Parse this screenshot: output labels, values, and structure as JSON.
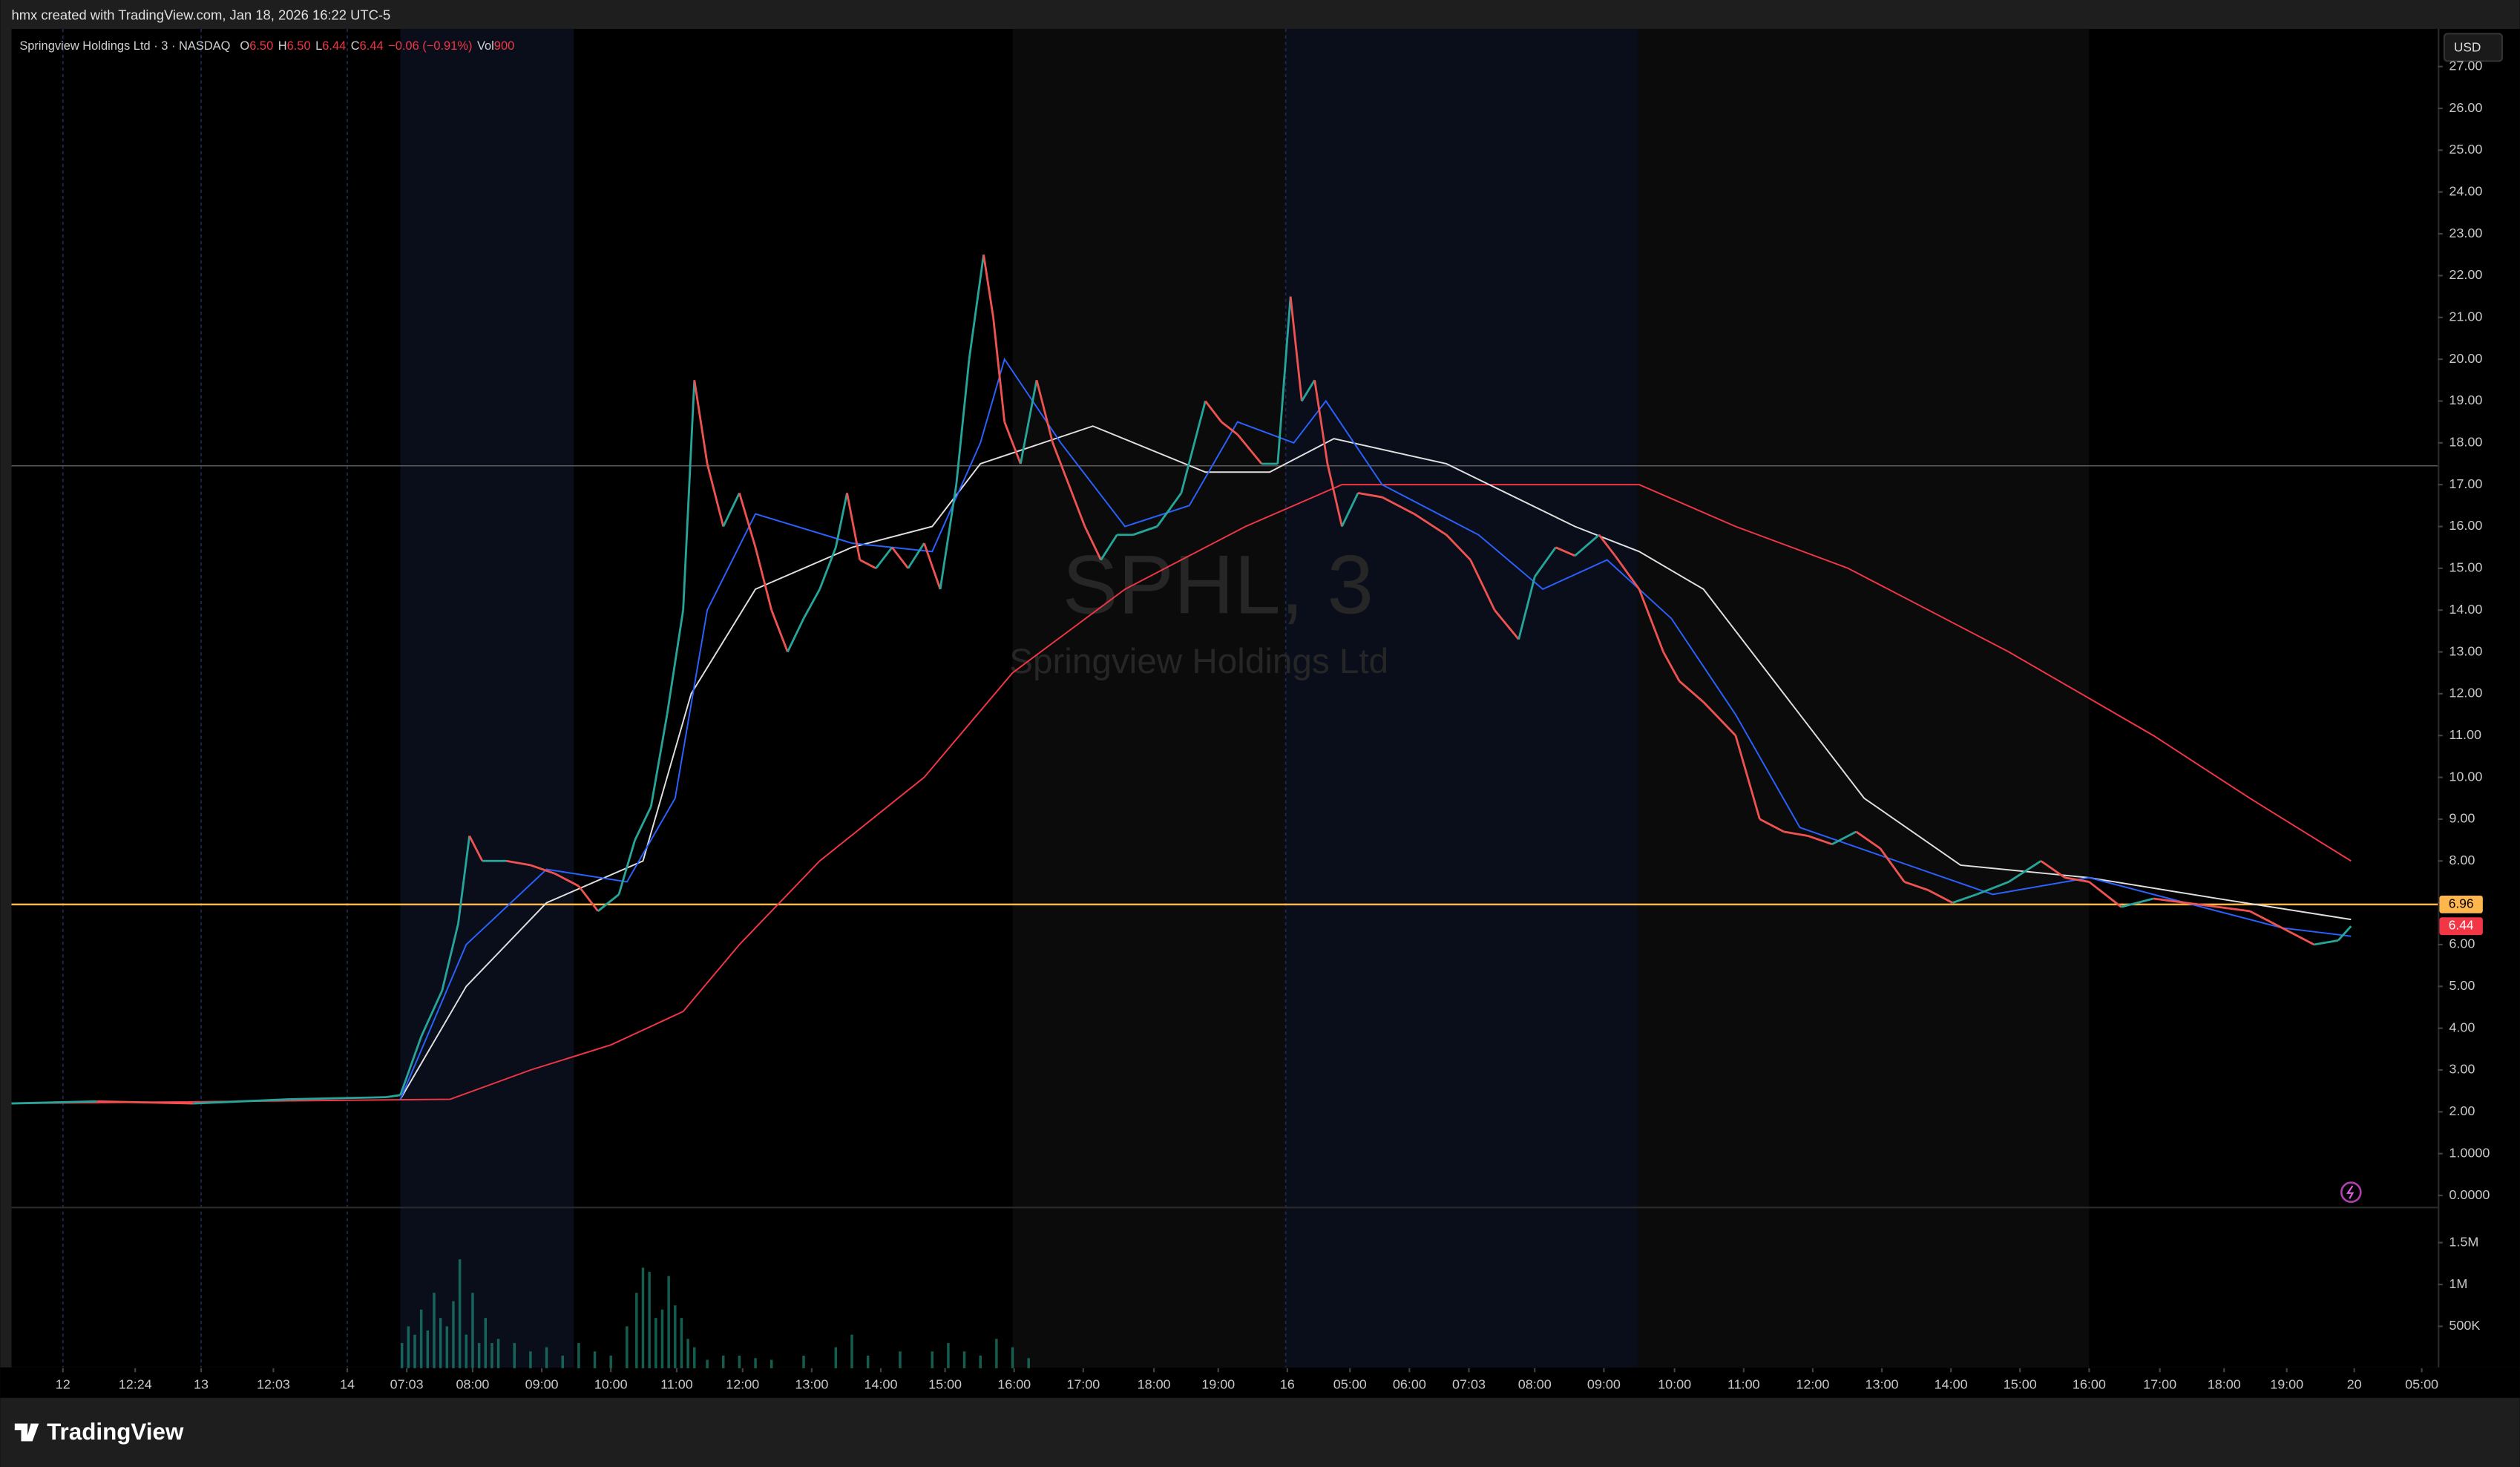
{
  "header": {
    "credit": "hmx created with TradingView.com, Jan 18, 2026 16:22 UTC-5"
  },
  "footer": {
    "logo": "TradingView"
  },
  "chart_data": {
    "type": "candlestick",
    "legend": {
      "symbol": "Springview Holdings Ltd · 3 · NASDAQ",
      "fields": [
        {
          "key": "O",
          "text": "6.50"
        },
        {
          "key": "H",
          "text": "6.50"
        },
        {
          "key": "L",
          "text": "6.44"
        },
        {
          "key": "C",
          "text": "6.44"
        }
      ],
      "change": "−0.06 (−0.91%)",
      "vol_key": "Vol",
      "vol": "900"
    },
    "watermark": {
      "ticker": "SPHL, 3",
      "name": "Springview Holdings Ltd"
    },
    "currency": "USD",
    "up_color": "#26a69a",
    "down_color": "#ef5350",
    "x": [
      0,
      53,
      113,
      173,
      233,
      242,
      255,
      268,
      278,
      285,
      293,
      308,
      323,
      338,
      353,
      365,
      378,
      388,
      398,
      408,
      418,
      425,
      433,
      443,
      453,
      463,
      473,
      483,
      493,
      503,
      513,
      520,
      528,
      538,
      548,
      558,
      568,
      578,
      588,
      596,
      605,
      611,
      618,
      628,
      638,
      648,
      658,
      668,
      678,
      688,
      698,
      713,
      728,
      743,
      753,
      763,
      778,
      788,
      796,
      803,
      811,
      819,
      828,
      838,
      853,
      873,
      893,
      908,
      923,
      938,
      948,
      961,
      973,
      988,
      998,
      1013,
      1028,
      1038,
      1053,
      1073,
      1088,
      1103,
      1118,
      1133,
      1148,
      1163,
      1178,
      1193,
      1208,
      1223,
      1243,
      1263,
      1278,
      1293,
      1313,
      1333,
      1353,
      1373,
      1393,
      1413,
      1433,
      1448,
      1456
    ],
    "values": [
      2.2,
      2.25,
      2.2,
      2.3,
      2.35,
      2.4,
      3.8,
      4.9,
      6.5,
      8.6,
      8,
      8,
      7.9,
      7.7,
      7.4,
      6.8,
      7.2,
      8.5,
      9.3,
      11.5,
      14,
      19.5,
      17.5,
      16,
      16.8,
      15.5,
      14,
      13,
      13.8,
      14.5,
      15.5,
      16.8,
      15.2,
      15,
      15.5,
      15,
      15.6,
      14.5,
      17,
      20,
      22.5,
      21,
      18.5,
      17.5,
      19.5,
      18,
      17,
      16,
      15.2,
      15.8,
      15.8,
      16,
      16.8,
      19,
      18.5,
      18.2,
      17.5,
      17.5,
      21.5,
      19,
      19.5,
      17.5,
      16,
      16.8,
      16.7,
      16.3,
      15.8,
      15.2,
      14,
      13.3,
      14.8,
      15.5,
      15.3,
      15.8,
      15.3,
      14.5,
      13,
      12.3,
      11.8,
      11,
      9,
      8.7,
      8.6,
      8.4,
      8.7,
      8.3,
      7.5,
      7.3,
      7,
      7.2,
      7.5,
      8,
      7.6,
      7.5,
      6.9,
      7.1,
      7,
      6.9,
      6.8,
      6.4,
      6,
      6.1,
      6.44
    ],
    "moving_averages": [
      {
        "color": "#f23645",
        "x": [
          0,
          273,
          323,
          373,
          418,
          453,
          503,
          568,
          623,
          693,
          768,
          828,
          893,
          1013,
          1073,
          1143,
          1243,
          1333,
          1393,
          1456
        ],
        "values": [
          2.2,
          2.3,
          3,
          3.6,
          4.4,
          6,
          8,
          10,
          12.5,
          14.5,
          16,
          17,
          17,
          17,
          16,
          15,
          13,
          11,
          9.5,
          8
        ]
      },
      {
        "color": "#e0e0e0",
        "x": [
          242,
          283,
          333,
          393,
          423,
          463,
          523,
          573,
          603,
          673,
          743,
          783,
          823,
          893,
          973,
          1013,
          1053,
          1103,
          1153,
          1213,
          1293,
          1373,
          1456
        ],
        "values": [
          2.3,
          5,
          7,
          8,
          12,
          14.5,
          15.5,
          16,
          17.5,
          18.4,
          17.3,
          17.3,
          18.1,
          17.5,
          16,
          15.4,
          14.5,
          12,
          9.5,
          7.9,
          7.6,
          7.1,
          6.6
        ]
      },
      {
        "color": "#2962ff",
        "x": [
          242,
          283,
          333,
          383,
          413,
          433,
          463,
          523,
          573,
          603,
          618,
          653,
          693,
          733,
          763,
          798,
          818,
          853,
          913,
          953,
          993,
          1033,
          1073,
          1113,
          1173,
          1233,
          1293,
          1353,
          1413,
          1456
        ],
        "values": [
          2.3,
          6,
          7.8,
          7.5,
          9.5,
          14,
          16.3,
          15.6,
          15.4,
          18,
          20,
          18,
          16,
          16.5,
          18.5,
          18,
          19,
          17,
          15.8,
          14.5,
          15.2,
          13.8,
          11.5,
          8.8,
          8,
          7.2,
          7.6,
          7,
          6.4,
          6.2
        ]
      }
    ],
    "volume": {
      "color": "#22ab94",
      "x": [
        243,
        247,
        251,
        255,
        259,
        263,
        267,
        271,
        275,
        279,
        283,
        287,
        291,
        295,
        299,
        303,
        313,
        323,
        333,
        343,
        353,
        363,
        373,
        383,
        389,
        393,
        397,
        401,
        405,
        409,
        413,
        417,
        421,
        425,
        433,
        443,
        453,
        463,
        473,
        493,
        513,
        523,
        533,
        553,
        573,
        583,
        593,
        603,
        613,
        623,
        633
      ],
      "values": [
        300000,
        500000,
        400000,
        700000,
        450000,
        900000,
        600000,
        500000,
        800000,
        1300000,
        400000,
        900000,
        300000,
        600000,
        300000,
        350000,
        300000,
        200000,
        250000,
        150000,
        300000,
        200000,
        150000,
        500000,
        900000,
        1200000,
        1150000,
        600000,
        700000,
        1100000,
        750000,
        600000,
        350000,
        250000,
        100000,
        150000,
        150000,
        120000,
        100000,
        150000,
        250000,
        400000,
        150000,
        200000,
        200000,
        300000,
        200000,
        150000,
        350000,
        250000,
        120000
      ],
      "ylim": [
        0,
        1900000
      ],
      "yticks": [
        {
          "value": 500000,
          "label": "500K"
        },
        {
          "value": 1000000,
          "label": "1M"
        },
        {
          "value": 1500000,
          "label": "1.5M"
        }
      ]
    },
    "horizontal_lines": [
      {
        "value": 17.45,
        "color": "#5a5a5a"
      },
      {
        "value": 6.96,
        "color": "#ffb74d",
        "label": "6.96"
      }
    ],
    "last_price": {
      "value": 6.44,
      "label": "6.44",
      "color": "#f23645"
    },
    "xlim": [
      0,
      1510
    ],
    "ylim": [
      -0.25,
      27.9
    ],
    "yticks": [
      {
        "value": 0,
        "label": "0.0000"
      },
      {
        "value": 1,
        "label": "1.0000"
      },
      {
        "value": 2,
        "label": "2.00"
      },
      {
        "value": 3,
        "label": "3.00"
      },
      {
        "value": 4,
        "label": "4.00"
      },
      {
        "value": 5,
        "label": "5.00"
      },
      {
        "value": 6,
        "label": "6.00"
      },
      {
        "value": 7,
        "label": "7.00"
      },
      {
        "value": 8,
        "label": "8.00"
      },
      {
        "value": 9,
        "label": "9.00"
      },
      {
        "value": 10,
        "label": "10.00"
      },
      {
        "value": 11,
        "label": "11.00"
      },
      {
        "value": 12,
        "label": "12.00"
      },
      {
        "value": 13,
        "label": "13.00"
      },
      {
        "value": 14,
        "label": "14.00"
      },
      {
        "value": 15,
        "label": "15.00"
      },
      {
        "value": 16,
        "label": "16.00"
      },
      {
        "value": 17,
        "label": "17.00"
      },
      {
        "value": 18,
        "label": "18.00"
      },
      {
        "value": 19,
        "label": "19.00"
      },
      {
        "value": 20,
        "label": "20.00"
      },
      {
        "value": 21,
        "label": "21.00"
      },
      {
        "value": 22,
        "label": "22.00"
      },
      {
        "value": 23,
        "label": "23.00"
      },
      {
        "value": 24,
        "label": "24.00"
      },
      {
        "value": 25,
        "label": "25.00"
      },
      {
        "value": 26,
        "label": "26.00"
      },
      {
        "value": 27,
        "label": "27.00"
      }
    ],
    "xticks": [
      {
        "value": 32,
        "label": "12"
      },
      {
        "value": 77,
        "label": "12:24"
      },
      {
        "value": 118,
        "label": "13"
      },
      {
        "value": 163,
        "label": "12:03"
      },
      {
        "value": 209,
        "label": "14"
      },
      {
        "value": 246,
        "label": "07:03"
      },
      {
        "value": 287,
        "label": "08:00"
      },
      {
        "value": 330,
        "label": "09:00"
      },
      {
        "value": 373,
        "label": "10:00"
      },
      {
        "value": 414,
        "label": "11:00"
      },
      {
        "value": 455,
        "label": "12:00"
      },
      {
        "value": 498,
        "label": "13:00"
      },
      {
        "value": 541,
        "label": "14:00"
      },
      {
        "value": 581,
        "label": "15:00"
      },
      {
        "value": 624,
        "label": "16:00"
      },
      {
        "value": 667,
        "label": "17:00"
      },
      {
        "value": 711,
        "label": "18:00"
      },
      {
        "value": 751,
        "label": "19:00"
      },
      {
        "value": 794,
        "label": "16"
      },
      {
        "value": 833,
        "label": "05:00"
      },
      {
        "value": 870,
        "label": "06:00"
      },
      {
        "value": 907,
        "label": "07:03"
      },
      {
        "value": 948,
        "label": "08:00"
      },
      {
        "value": 991,
        "label": "09:00"
      },
      {
        "value": 1035,
        "label": "10:00"
      },
      {
        "value": 1078,
        "label": "11:00"
      },
      {
        "value": 1121,
        "label": "12:00"
      },
      {
        "value": 1164,
        "label": "13:00"
      },
      {
        "value": 1207,
        "label": "14:00"
      },
      {
        "value": 1250,
        "label": "15:00"
      },
      {
        "value": 1293,
        "label": "16:00"
      },
      {
        "value": 1337,
        "label": "17:00"
      },
      {
        "value": 1377,
        "label": "18:00"
      },
      {
        "value": 1416,
        "label": "19:00"
      },
      {
        "value": 1458,
        "label": "20"
      },
      {
        "value": 1500,
        "label": "05:00"
      }
    ]
  }
}
